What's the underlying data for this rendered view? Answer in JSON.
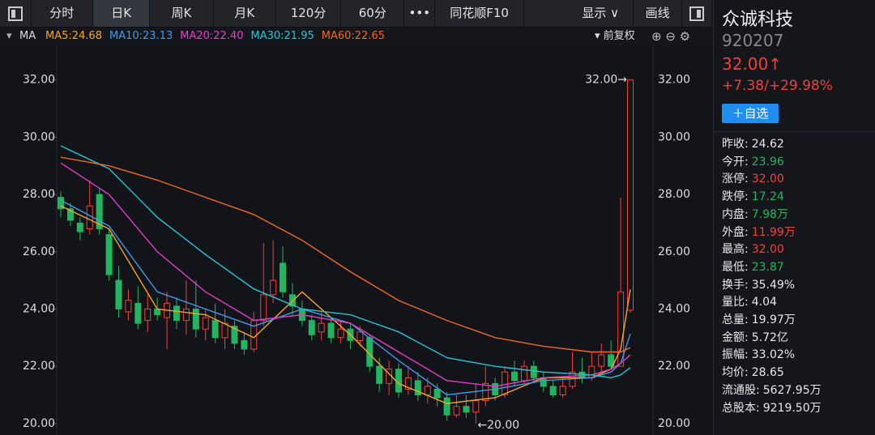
{
  "toolbar": {
    "tabs": [
      "分时",
      "日K",
      "周K",
      "月K",
      "120分",
      "60分",
      "•••",
      "同花顺F10"
    ],
    "right": [
      "显示",
      "画线"
    ]
  },
  "chart_data": {
    "type": "candlestick",
    "indicator": "MA",
    "adjust": "前复权",
    "ylim": [
      19.6,
      32.5
    ],
    "yticks": [
      {
        "value": 20,
        "label": "20.00"
      },
      {
        "value": 22,
        "label": "22.00"
      },
      {
        "value": 24,
        "label": "24.00"
      },
      {
        "value": 26,
        "label": "26.00"
      },
      {
        "value": 28,
        "label": "28.00"
      },
      {
        "value": 30,
        "label": "30.00"
      },
      {
        "value": 32,
        "label": "32.00"
      }
    ],
    "up_color": "#f0403c",
    "down_color": "#22b45f",
    "open": [
      27.9,
      27.5,
      27.0,
      26.8,
      28.0,
      26.6,
      25.0,
      23.9,
      24.2,
      23.6,
      24.0,
      23.7,
      24.1,
      23.6,
      24.0,
      23.3,
      23.6,
      23.0,
      23.4,
      22.9,
      22.6,
      23.6,
      24.5,
      25.6,
      24.5,
      24.0,
      23.6,
      23.2,
      23.5,
      23.0,
      23.3,
      22.9,
      23.0,
      22.0,
      21.4,
      21.9,
      21.2,
      21.5,
      21.0,
      21.2,
      20.9,
      20.3,
      20.6,
      20.4,
      20.8,
      21.4,
      21.0,
      21.8,
      21.5,
      22.0,
      21.6,
      21.3,
      21.0,
      21.3,
      21.8,
      21.6,
      22.0,
      22.4,
      22.0,
      23.96
    ],
    "high": [
      28.1,
      27.7,
      27.2,
      28.5,
      28.2,
      26.8,
      25.5,
      24.7,
      24.8,
      24.5,
      24.4,
      24.6,
      24.4,
      25.0,
      25.0,
      24.0,
      24.2,
      24.0,
      23.6,
      23.2,
      23.9,
      26.3,
      26.4,
      26.2,
      24.9,
      24.3,
      23.8,
      23.9,
      23.7,
      23.6,
      23.5,
      23.4,
      23.1,
      22.3,
      22.2,
      22.1,
      22.0,
      21.8,
      21.6,
      21.4,
      21.1,
      21.0,
      21.0,
      21.4,
      22.0,
      21.6,
      22.0,
      22.2,
      22.2,
      22.2,
      21.8,
      21.5,
      21.6,
      22.5,
      22.3,
      22.5,
      22.8,
      22.9,
      27.9,
      32.0
    ],
    "low": [
      27.2,
      26.9,
      26.4,
      26.6,
      26.6,
      25.0,
      23.7,
      23.6,
      23.3,
      23.2,
      23.6,
      22.6,
      23.3,
      23.1,
      23.0,
      22.9,
      22.8,
      22.6,
      22.6,
      22.4,
      22.5,
      23.4,
      24.2,
      24.4,
      23.8,
      23.4,
      22.9,
      22.9,
      22.8,
      22.8,
      22.6,
      22.7,
      21.8,
      21.1,
      21.0,
      20.9,
      21.0,
      20.8,
      20.7,
      20.6,
      20.1,
      20.2,
      20.2,
      20.0,
      20.6,
      20.8,
      20.9,
      21.3,
      21.4,
      21.4,
      21.1,
      20.9,
      20.9,
      21.2,
      21.4,
      21.5,
      21.8,
      21.9,
      22.0,
      23.87
    ],
    "close": [
      27.5,
      27.1,
      26.7,
      27.6,
      26.8,
      25.2,
      24.0,
      24.3,
      23.5,
      24.0,
      23.8,
      24.2,
      23.6,
      24.0,
      23.3,
      23.7,
      23.0,
      23.5,
      22.8,
      22.6,
      23.6,
      24.5,
      25.0,
      24.6,
      24.1,
      23.6,
      23.1,
      23.5,
      23.0,
      23.3,
      22.9,
      23.2,
      22.0,
      21.4,
      21.9,
      21.1,
      21.6,
      21.0,
      21.3,
      20.9,
      20.3,
      20.6,
      20.4,
      20.8,
      21.4,
      21.0,
      21.8,
      21.5,
      22.0,
      21.6,
      21.3,
      21.0,
      21.3,
      21.8,
      21.6,
      22.0,
      22.4,
      22.0,
      24.6,
      32.0
    ],
    "series": [
      {
        "name": "MA5:24.68",
        "color": "#f5a623",
        "x": [
          0,
          5,
          10,
          15,
          20,
          25,
          30,
          35,
          40,
          45,
          50,
          55,
          57,
          58,
          59
        ],
        "values": [
          27.6,
          26.8,
          24.0,
          23.8,
          23.0,
          24.6,
          23.1,
          21.4,
          20.7,
          20.9,
          21.6,
          21.6,
          21.9,
          22.6,
          24.68
        ]
      },
      {
        "name": "MA10:23.13",
        "color": "#3d9be9",
        "x": [
          0,
          5,
          10,
          15,
          20,
          25,
          30,
          35,
          40,
          45,
          50,
          55,
          57,
          58,
          59
        ],
        "values": [
          27.8,
          26.9,
          24.6,
          24.0,
          23.4,
          24.0,
          23.5,
          22.2,
          21.0,
          21.2,
          21.5,
          21.6,
          21.8,
          22.1,
          23.13
        ]
      },
      {
        "name": "MA20:22.40",
        "color": "#e33fc4",
        "x": [
          0,
          5,
          10,
          15,
          20,
          25,
          30,
          35,
          40,
          45,
          50,
          55,
          57,
          58,
          59
        ],
        "values": [
          29.1,
          28.0,
          26.0,
          24.6,
          23.6,
          23.8,
          23.5,
          22.5,
          21.5,
          21.3,
          21.6,
          21.7,
          21.9,
          22.1,
          22.4
        ]
      },
      {
        "name": "MA30:21.95",
        "color": "#22c7d6",
        "x": [
          0,
          5,
          10,
          15,
          20,
          25,
          30,
          35,
          40,
          45,
          50,
          55,
          57,
          58,
          59
        ],
        "values": [
          29.7,
          28.9,
          27.2,
          25.9,
          24.7,
          24.0,
          23.8,
          23.2,
          22.3,
          22.0,
          21.8,
          21.7,
          21.6,
          21.7,
          21.95
        ]
      },
      {
        "name": "MA60:22.65",
        "color": "#f06a21",
        "x": [
          0,
          5,
          10,
          15,
          20,
          25,
          30,
          35,
          40,
          45,
          50,
          55,
          57,
          58,
          59
        ],
        "values": [
          29.3,
          29.0,
          28.5,
          27.9,
          27.3,
          26.4,
          25.3,
          24.3,
          23.6,
          23.0,
          22.7,
          22.5,
          22.5,
          22.5,
          22.65
        ]
      }
    ],
    "annotations": [
      "32.00→",
      "←20.00"
    ]
  },
  "sidebar": {
    "name": "众诚科技",
    "code": "920207",
    "price": "32.00↑",
    "change": "+7.38/+29.98%",
    "button": "＋自选",
    "rows": [
      {
        "label": "昨收:",
        "value": "24.62",
        "color": "#e8e8e8"
      },
      {
        "label": "今开:",
        "value": "23.96",
        "color": "#22b45f"
      },
      {
        "label": "涨停:",
        "value": "32.00",
        "color": "#f0403c"
      },
      {
        "label": "跌停:",
        "value": "17.24",
        "color": "#22b45f"
      },
      {
        "label": "内盘:",
        "value": "7.98万",
        "color": "#22b45f"
      },
      {
        "label": "外盘:",
        "value": "11.99万",
        "color": "#f0403c"
      },
      {
        "label": "最高:",
        "value": "32.00",
        "color": "#f0403c"
      },
      {
        "label": "最低:",
        "value": "23.87",
        "color": "#22b45f"
      },
      {
        "label": "换手:",
        "value": "35.49%",
        "color": "#e8e8e8"
      },
      {
        "label": "量比:",
        "value": "4.04",
        "color": "#e8e8e8"
      },
      {
        "label": "总量:",
        "value": "19.97万",
        "color": "#e8e8e8"
      },
      {
        "label": "金额:",
        "value": "5.72亿",
        "color": "#e8e8e8"
      },
      {
        "label": "振幅:",
        "value": "33.02%",
        "color": "#e8e8e8"
      },
      {
        "label": "均价:",
        "value": "28.65",
        "color": "#e8e8e8"
      },
      {
        "label": "流通股:",
        "value": "5627.95万",
        "color": "#e8e8e8"
      },
      {
        "label": "总股本:",
        "value": "9219.50万",
        "color": "#e8e8e8"
      }
    ]
  }
}
